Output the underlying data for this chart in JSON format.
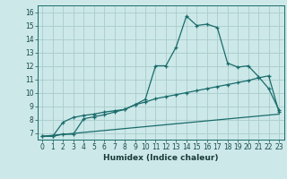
{
  "xlabel": "Humidex (Indice chaleur)",
  "bg_color": "#cce8e8",
  "grid_color": "#aacccc",
  "line_color": "#1a6b6b",
  "xlim": [
    -0.5,
    23.5
  ],
  "ylim": [
    6.5,
    16.5
  ],
  "xticks": [
    0,
    1,
    2,
    3,
    4,
    5,
    6,
    7,
    8,
    9,
    10,
    11,
    12,
    13,
    14,
    15,
    16,
    17,
    18,
    19,
    20,
    21,
    22,
    23
  ],
  "yticks": [
    7,
    8,
    9,
    10,
    11,
    12,
    13,
    14,
    15,
    16
  ],
  "line1_x": [
    0,
    1,
    2,
    3,
    4,
    5,
    6,
    7,
    8,
    9,
    10,
    11,
    12,
    13,
    14,
    15,
    16,
    17,
    18,
    19,
    20,
    21,
    22,
    23
  ],
  "line1_y": [
    6.75,
    6.75,
    6.9,
    6.9,
    8.05,
    8.2,
    8.35,
    8.55,
    8.75,
    9.1,
    9.5,
    12.0,
    12.0,
    13.4,
    15.7,
    15.0,
    15.1,
    14.85,
    12.2,
    11.9,
    12.0,
    11.2,
    10.3,
    8.7
  ],
  "line2_x": [
    0,
    1,
    2,
    3,
    4,
    5,
    6,
    7,
    8,
    9,
    10,
    11,
    12,
    13,
    14,
    15,
    16,
    17,
    18,
    19,
    20,
    21,
    22,
    23
  ],
  "line2_y": [
    6.75,
    6.75,
    7.8,
    8.15,
    8.3,
    8.4,
    8.55,
    8.65,
    8.75,
    9.1,
    9.3,
    9.55,
    9.7,
    9.85,
    10.0,
    10.15,
    10.3,
    10.45,
    10.6,
    10.75,
    10.9,
    11.1,
    11.25,
    8.55
  ],
  "line3_x": [
    0,
    23
  ],
  "line3_y": [
    6.75,
    8.4
  ]
}
